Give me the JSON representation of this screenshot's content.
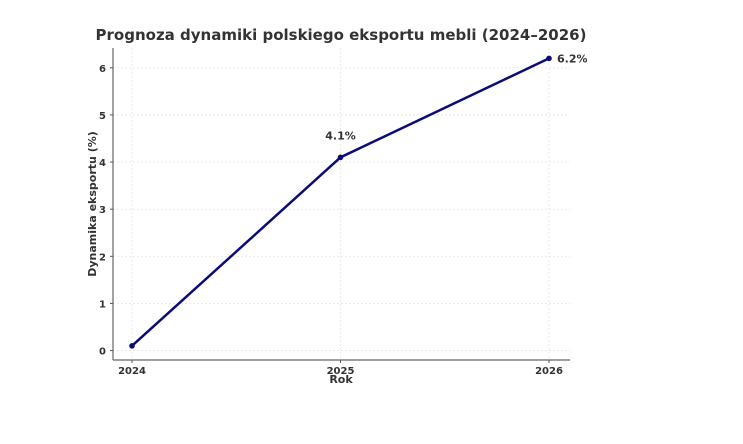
{
  "chart_data": {
    "type": "line",
    "title": "Prognoza dynamiki polskiego eksportu mebli (2024–2026)",
    "xlabel": "Rok",
    "ylabel": "Dynamika eksportu (%)",
    "x": [
      "2024",
      "2025",
      "2026"
    ],
    "series": [
      {
        "values": [
          0.1,
          4.1,
          6.2
        ],
        "color": "#0b0b7a"
      }
    ],
    "annotations": [
      {
        "x": "2025",
        "y": 4.1,
        "text": "4.1%"
      },
      {
        "x": "2026",
        "y": 6.2,
        "text": "6.2%"
      }
    ],
    "yticks": [
      0,
      1,
      2,
      3,
      4,
      5,
      6
    ],
    "ylim": [
      -0.2,
      6.42
    ],
    "grid": true,
    "legend": "none"
  }
}
